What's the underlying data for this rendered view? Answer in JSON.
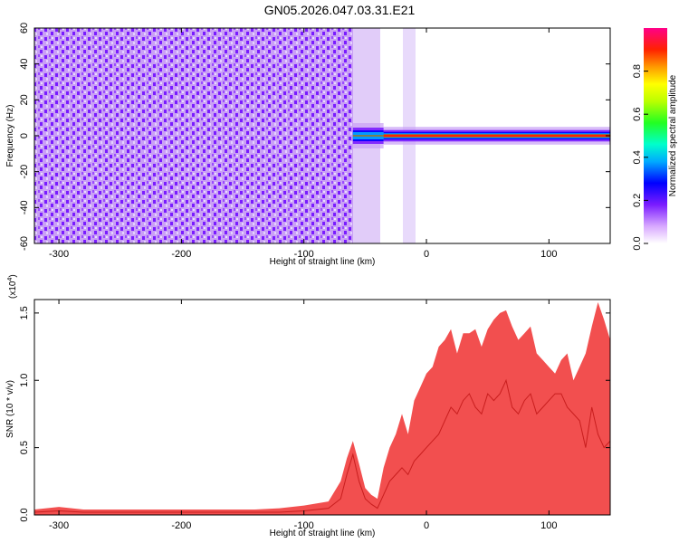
{
  "title": "GN05.2026.047.03.31.E21",
  "chart_data": [
    {
      "type": "heatmap",
      "xlabel": "Height of straight line (km)",
      "ylabel": "Frequency (Hz)",
      "xlim": [
        -320,
        150
      ],
      "ylim": [
        -60,
        60
      ],
      "x_ticks": [
        -300,
        -200,
        -100,
        0,
        100
      ],
      "y_ticks": [
        -60,
        -40,
        -20,
        0,
        20,
        40,
        60
      ],
      "colorbar": {
        "label": "Normalized spectral amplitude",
        "range": [
          0,
          1
        ],
        "ticks": [
          0.0,
          0.2,
          0.4,
          0.6,
          0.8
        ]
      },
      "regions": [
        {
          "x_range": [
            -320,
            -60
          ],
          "description_values": {
            "mean_amplitude": 0.15
          }
        },
        {
          "x_range": [
            -60,
            -35
          ],
          "freq_center": 0,
          "peak_amplitude": 0.4
        },
        {
          "x_range": [
            -35,
            150
          ],
          "freq_center": 0,
          "peak_amplitude": 1.0
        }
      ],
      "stripe_centers": [
        -320,
        -300,
        -280,
        -260,
        -240,
        -220,
        -200,
        -180,
        -160,
        -140,
        -120,
        -100,
        -80,
        -60,
        -40,
        -20,
        0,
        20,
        40,
        60,
        80,
        100,
        120,
        140,
        150
      ],
      "stripe_freq_center": [
        0,
        0,
        0,
        0,
        0,
        0,
        0,
        0,
        0,
        0,
        0,
        0,
        0,
        0,
        0,
        0,
        0,
        0,
        0,
        0,
        0,
        0,
        0,
        0,
        1
      ]
    },
    {
      "type": "line",
      "xlabel": "Height of straight line (km)",
      "ylabel": "SNR (10 * v/v)",
      "y_multiplier": "(x10",
      "y_multiplier_exp": "4",
      "y_multiplier_close": ")",
      "xlim": [
        -320,
        150
      ],
      "ylim": [
        0,
        1.6
      ],
      "x_ticks": [
        -300,
        -200,
        -100,
        0,
        100
      ],
      "y_ticks": [
        "0.0",
        "0.5",
        "1.0",
        "1.5"
      ],
      "series": [
        {
          "color": "#f03030",
          "x": [
            -320,
            -300,
            -280,
            -260,
            -240,
            -220,
            -200,
            -180,
            -160,
            -140,
            -120,
            -100,
            -80,
            -70,
            -65,
            -60,
            -55,
            -50,
            -45,
            -40,
            -35,
            -30,
            -25,
            -20,
            -15,
            -10,
            -5,
            0,
            5,
            10,
            15,
            20,
            25,
            30,
            35,
            40,
            45,
            50,
            55,
            60,
            65,
            70,
            75,
            80,
            85,
            90,
            95,
            100,
            105,
            110,
            115,
            120,
            125,
            130,
            135,
            140,
            145,
            150
          ],
          "y": [
            0.02,
            0.03,
            0.02,
            0.02,
            0.02,
            0.02,
            0.02,
            0.02,
            0.02,
            0.02,
            0.02,
            0.03,
            0.05,
            0.12,
            0.3,
            0.45,
            0.25,
            0.12,
            0.08,
            0.05,
            0.15,
            0.25,
            0.3,
            0.35,
            0.3,
            0.4,
            0.45,
            0.5,
            0.55,
            0.6,
            0.7,
            0.8,
            0.75,
            0.85,
            0.9,
            0.8,
            0.75,
            0.9,
            0.85,
            0.9,
            1.0,
            0.8,
            0.75,
            0.85,
            0.9,
            0.75,
            0.8,
            0.85,
            0.9,
            0.9,
            0.8,
            0.75,
            0.7,
            0.5,
            0.8,
            0.6,
            0.5,
            0.55
          ],
          "upper_envelope": [
            0.04,
            0.06,
            0.04,
            0.04,
            0.04,
            0.04,
            0.04,
            0.04,
            0.04,
            0.04,
            0.05,
            0.07,
            0.1,
            0.25,
            0.42,
            0.55,
            0.38,
            0.2,
            0.15,
            0.12,
            0.35,
            0.5,
            0.6,
            0.75,
            0.6,
            0.85,
            0.95,
            1.05,
            1.1,
            1.25,
            1.3,
            1.38,
            1.2,
            1.35,
            1.35,
            1.38,
            1.25,
            1.38,
            1.45,
            1.5,
            1.52,
            1.4,
            1.3,
            1.35,
            1.4,
            1.2,
            1.15,
            1.1,
            1.05,
            1.15,
            1.2,
            1.0,
            1.1,
            1.2,
            1.4,
            1.58,
            1.45,
            1.3
          ]
        }
      ]
    }
  ]
}
